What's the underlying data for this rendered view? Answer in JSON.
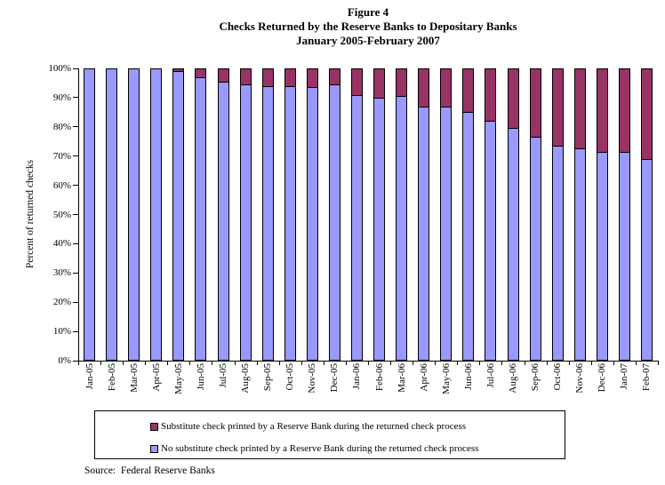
{
  "title": {
    "line1": "Figure 4",
    "line2": "Checks Returned by the Reserve Banks to Depositary Banks",
    "line3": "January 2005-February 2007"
  },
  "source": "Source:  Federal Reserve Banks",
  "legend": {
    "items": [
      {
        "key": "substitute",
        "label": "Substitute check printed by a Reserve Bank during the returned check process",
        "color": "#993366"
      },
      {
        "key": "no-substitute",
        "label": "No substitute check printed by a Reserve Bank during the returned check process",
        "color": "#9999FF"
      }
    ]
  },
  "chart_data": {
    "type": "bar",
    "stacked": true,
    "title": "Figure 4 — Checks Returned by the Reserve Banks to Depositary Banks, January 2005-February 2007",
    "xlabel": "",
    "ylabel": "Percent of returned checks",
    "ylim": [
      0,
      100
    ],
    "y_ticks": [
      "0%",
      "10%",
      "20%",
      "30%",
      "40%",
      "50%",
      "60%",
      "70%",
      "80%",
      "90%",
      "100%"
    ],
    "grid": false,
    "legend_position": "bottom",
    "categories": [
      "Jan-05",
      "Feb-05",
      "Mar-05",
      "Apr-05",
      "May-05",
      "Jun-05",
      "Jul-05",
      "Aug-05",
      "Sep-05",
      "Oct-05",
      "Nov-05",
      "Dec-05",
      "Jan-06",
      "Feb-06",
      "Mar-06",
      "Apr-06",
      "May-06",
      "Jun-06",
      "Jul-06",
      "Aug-06",
      "Sep-06",
      "Oct-06",
      "Nov-06",
      "Dec-06",
      "Jan-07",
      "Feb-07"
    ],
    "series": [
      {
        "name": "No substitute check printed by a Reserve Bank during the returned check process",
        "color": "#9999FF",
        "values": [
          100,
          100,
          100,
          100,
          99,
          97,
          95.5,
          94.5,
          94,
          94,
          93.5,
          94.5,
          91,
          90,
          90.5,
          87,
          87,
          85,
          82,
          79.5,
          76.5,
          73.5,
          72.5,
          71.5,
          71.5,
          69
        ]
      },
      {
        "name": "Substitute check printed by a Reserve Bank during the returned check process",
        "color": "#993366",
        "values": [
          0,
          0,
          0,
          0,
          1,
          3,
          4.5,
          5.5,
          6,
          6,
          6.5,
          5.5,
          9,
          10,
          9.5,
          13,
          13,
          15,
          18,
          20.5,
          23.5,
          26.5,
          27.5,
          28.5,
          28.5,
          31
        ]
      }
    ]
  }
}
